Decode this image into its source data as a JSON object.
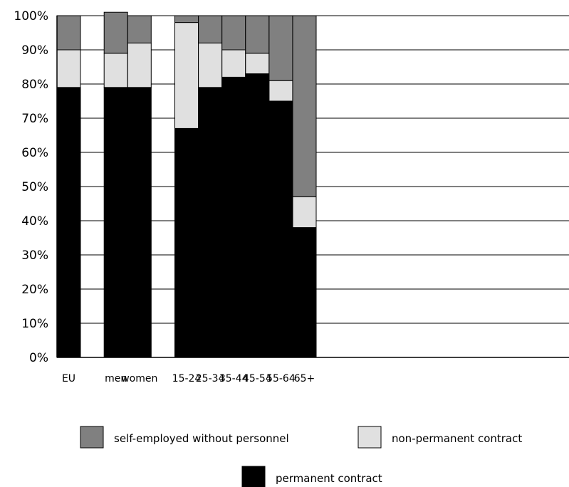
{
  "chart_data": {
    "type": "bar",
    "stacked": true,
    "categories": [
      "EU",
      "",
      "men",
      "women",
      "",
      "15-24",
      "25-34",
      "35-44",
      "45-54",
      "55-64",
      "65+"
    ],
    "series": [
      {
        "name": "permanent contract",
        "color": "#000000",
        "values": [
          79,
          null,
          79,
          79,
          null,
          67,
          79,
          82,
          83,
          75,
          38
        ]
      },
      {
        "name": "non-permanent contract",
        "color": "#e0e0e0",
        "values": [
          11,
          null,
          10,
          13,
          null,
          31,
          13,
          8,
          6,
          6,
          9
        ]
      },
      {
        "name": "self-employed without personnel",
        "color": "#808080",
        "values": [
          10,
          null,
          12,
          8,
          null,
          2,
          8,
          10,
          11,
          19,
          53
        ]
      }
    ],
    "y_ticks": [
      "0%",
      "10%",
      "20%",
      "30%",
      "40%",
      "50%",
      "60%",
      "70%",
      "80%",
      "90%",
      "100%"
    ],
    "ylim": [
      0,
      100
    ],
    "grid": true,
    "legend_position": "bottom",
    "legend": [
      {
        "label": "self-employed without personnel",
        "color": "#808080"
      },
      {
        "label": "non-permanent contract",
        "color": "#e0e0e0"
      },
      {
        "label": "permanent contract",
        "color": "#000000"
      }
    ]
  }
}
